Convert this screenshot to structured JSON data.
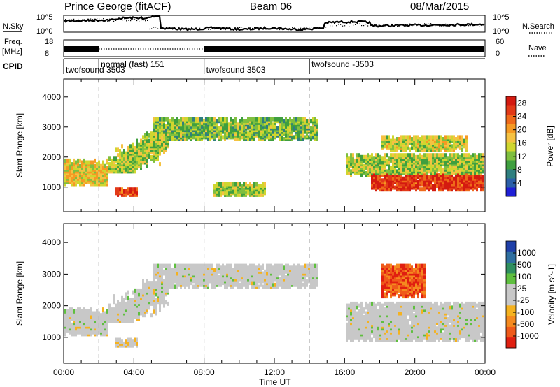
{
  "header": {
    "station": "Prince George (fitACF)",
    "beam": "Beam 06",
    "date": "08/Mar/2015"
  },
  "side_labels": {
    "nsky": "N.Sky",
    "nsearch": "N.Search",
    "freq": "Freq.",
    "freq_unit": "[MHz]",
    "nave": "Nave",
    "cpid": "CPID"
  },
  "noise_axis": {
    "left_ticks": [
      "10^5",
      "10^0"
    ],
    "right_ticks": [
      "10^5",
      "10^0"
    ]
  },
  "freq_axis": {
    "left_ticks": [
      "18",
      "8"
    ],
    "right_ticks": [
      "60",
      "0"
    ]
  },
  "cpid_segments": [
    {
      "label": "twofsound 3503",
      "start_h": 0
    },
    {
      "label": "normal (fast) 151",
      "start_h": 2
    },
    {
      "label": "twofsound 3503",
      "start_h": 8
    },
    {
      "label": "twofsound -3503",
      "start_h": 14
    }
  ],
  "time_axis": {
    "ticks": [
      "00:00",
      "04:00",
      "08:00",
      "12:00",
      "16:00",
      "20:00",
      "00:00"
    ],
    "label": "Time UT"
  },
  "chart_data": [
    {
      "type": "heatmap",
      "title": "Power",
      "xlabel": "Time UT",
      "ylabel": "Slant Range [km]",
      "xlim_hours": [
        0,
        24
      ],
      "ylim_km": [
        180,
        4600
      ],
      "y_ticks": [
        "1000",
        "2000",
        "3000",
        "4000"
      ],
      "colorbar": {
        "label": "Power [dB]",
        "ticks": [
          "4",
          "8",
          "12",
          "16",
          "20",
          "24",
          "28"
        ],
        "range": [
          0,
          30
        ],
        "colors": [
          "#1f1fd6",
          "#2b5fa8",
          "#2f7f7f",
          "#3f9f3f",
          "#7fbf3f",
          "#cfd62f",
          "#f5c242",
          "#f59a23",
          "#ef6a1a",
          "#e23a18",
          "#d41a10"
        ]
      },
      "regions": [
        {
          "name": "early band",
          "t0": 0,
          "t1": 2.5,
          "r_lo": 1100,
          "r_hi": 1900,
          "level": 0.55
        },
        {
          "name": "rising band",
          "t0": 2.5,
          "t1": 6,
          "r_lo": 1500,
          "r_hi": 2800,
          "level": 0.45
        },
        {
          "name": "upper band",
          "t0": 5,
          "t1": 14.5,
          "r_lo": 2600,
          "r_hi": 3300,
          "level": 0.4
        },
        {
          "name": "lower patch",
          "t0": 2.8,
          "t1": 4.2,
          "r_lo": 700,
          "r_hi": 950,
          "level": 0.85
        },
        {
          "name": "mid patch",
          "t0": 8.5,
          "t1": 11.5,
          "r_lo": 700,
          "r_hi": 1100,
          "level": 0.45
        },
        {
          "name": "late bright band",
          "t0": 17.5,
          "t1": 24,
          "r_lo": 900,
          "r_hi": 1400,
          "level": 0.9
        },
        {
          "name": "late mid band",
          "t0": 16,
          "t1": 24,
          "r_lo": 1400,
          "r_hi": 2100,
          "level": 0.45
        },
        {
          "name": "late upper patch",
          "t0": 18,
          "t1": 23,
          "r_lo": 2200,
          "r_hi": 2700,
          "level": 0.5
        }
      ]
    },
    {
      "type": "heatmap",
      "title": "Velocity",
      "xlabel": "Time UT",
      "ylabel": "Slant Range [km]",
      "xlim_hours": [
        0,
        24
      ],
      "ylim_km": [
        180,
        4600
      ],
      "y_ticks": [
        "1000",
        "2000",
        "3000",
        "4000"
      ],
      "colorbar": {
        "label": "Velocity [m s^-1]",
        "ticks": [
          "1000",
          "500",
          "100",
          "25",
          "-25",
          "-100",
          "-500",
          "-1000"
        ],
        "range": [
          -1000,
          1000
        ],
        "colors": [
          "#1f3fa8",
          "#2f6fa0",
          "#2f8f5f",
          "#5fbf3f",
          "#c8c8c8",
          "#c8c8c8",
          "#f5b21f",
          "#f58a1f",
          "#ef5a1a",
          "#e01f10"
        ]
      },
      "regions": [
        {
          "name": "ground scatter early",
          "t0": 0,
          "t1": 2.5,
          "r_lo": 1100,
          "r_hi": 1900,
          "v": 0
        },
        {
          "name": "ground scatter rising",
          "t0": 2.5,
          "t1": 6,
          "r_lo": 1500,
          "r_hi": 2800,
          "v": 0
        },
        {
          "name": "ground scatter upper",
          "t0": 5,
          "t1": 14.5,
          "r_lo": 2600,
          "r_hi": 3300,
          "v": 0
        },
        {
          "name": "orange patch",
          "t0": 2.8,
          "t1": 4.2,
          "r_lo": 700,
          "r_hi": 950,
          "v": -150
        },
        {
          "name": "ground scatter late",
          "t0": 16,
          "t1": 24,
          "r_lo": 900,
          "r_hi": 2100,
          "v": 0
        },
        {
          "name": "red patch",
          "t0": 18,
          "t1": 20.5,
          "r_lo": 2300,
          "r_hi": 3300,
          "v": -700
        }
      ]
    }
  ],
  "colors": {
    "axis": "#000000",
    "dashed_marker": "#b0b0b0"
  }
}
